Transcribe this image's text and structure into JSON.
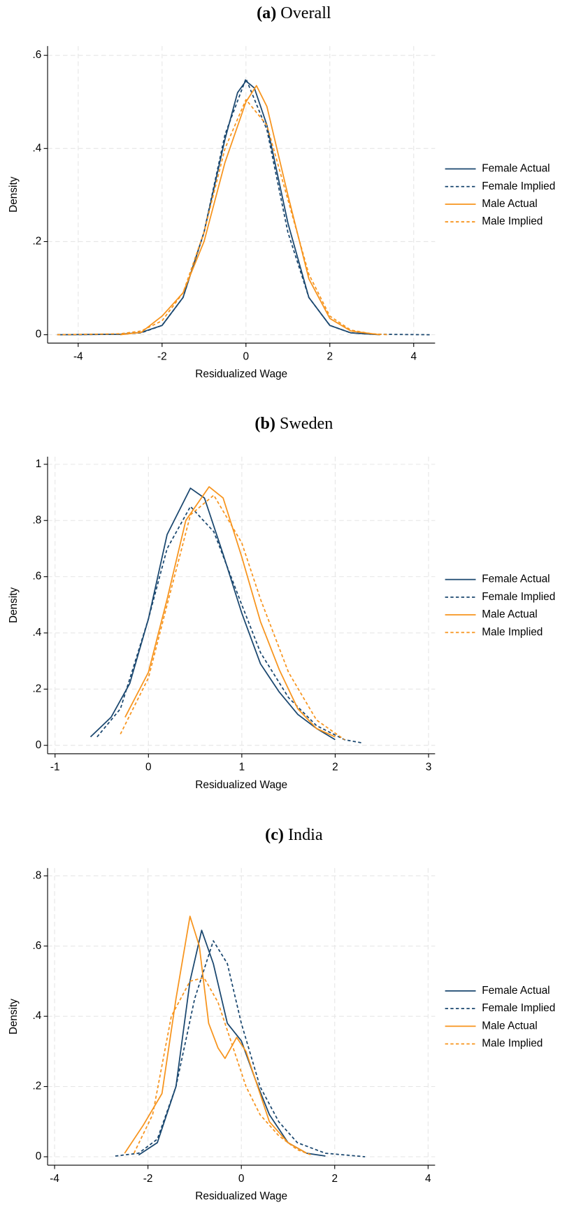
{
  "chart_data": [
    {
      "type": "line",
      "panel": "(a)",
      "title": "Overall",
      "x_label": "Residualized Wage",
      "y_label": "Density",
      "xlim": [
        -4.73,
        4.51
      ],
      "ylim": [
        -0.018,
        0.62
      ],
      "xticks": [
        -4,
        -2,
        0,
        2,
        4
      ],
      "yticks": [
        0,
        {
          "value": 0.2,
          "label": ".2"
        },
        {
          "value": 0.4,
          "label": ".4"
        },
        {
          "value": 0.6,
          "label": ".6"
        }
      ],
      "grid": true,
      "legend": "right",
      "series": [
        {
          "name": "Female Actual",
          "color": "#1a476f",
          "dashed": false,
          "x": [
            -4.5,
            -3,
            -2.5,
            -2,
            -1.5,
            -1,
            -0.5,
            -0.2,
            0,
            0.2,
            0.5,
            1,
            1.5,
            2,
            2.5,
            3.2
          ],
          "values": [
            0,
            0.001,
            0.005,
            0.02,
            0.08,
            0.22,
            0.42,
            0.52,
            0.545,
            0.53,
            0.45,
            0.24,
            0.08,
            0.02,
            0.004,
            0
          ]
        },
        {
          "name": "Female Implied",
          "color": "#1a476f",
          "dashed": true,
          "x": [
            -4.5,
            -3,
            -2.5,
            -2,
            -1.5,
            -1,
            -0.5,
            0,
            0.5,
            1,
            1.5,
            2,
            2.5,
            3,
            4.4
          ],
          "values": [
            0,
            0.001,
            0.004,
            0.02,
            0.08,
            0.22,
            0.43,
            0.55,
            0.44,
            0.22,
            0.08,
            0.02,
            0.004,
            0.001,
            0
          ]
        },
        {
          "name": "Male Actual",
          "color": "#f7941d",
          "dashed": false,
          "x": [
            -3,
            -2.5,
            -2,
            -1.5,
            -1,
            -0.5,
            0,
            0.25,
            0.5,
            1,
            1.5,
            2,
            2.5,
            3.2
          ],
          "values": [
            0,
            0.005,
            0.04,
            0.09,
            0.2,
            0.37,
            0.5,
            0.535,
            0.49,
            0.3,
            0.12,
            0.035,
            0.008,
            0
          ]
        },
        {
          "name": "Male Implied",
          "color": "#f7941d",
          "dashed": true,
          "x": [
            -4.5,
            -3,
            -2.5,
            -2,
            -1.5,
            -1,
            -0.5,
            0,
            0.5,
            1,
            1.5,
            2,
            2.5,
            3,
            3.4
          ],
          "values": [
            0,
            0.002,
            0.008,
            0.03,
            0.09,
            0.22,
            0.4,
            0.505,
            0.45,
            0.29,
            0.13,
            0.04,
            0.01,
            0.002,
            0
          ]
        }
      ]
    },
    {
      "type": "line",
      "panel": "(b)",
      "title": "Sweden",
      "x_label": "Residualized Wage",
      "y_label": "Density",
      "xlim": [
        -1.08,
        3.07
      ],
      "ylim": [
        -0.03,
        1.027
      ],
      "xticks": [
        -1,
        0,
        1,
        2,
        3
      ],
      "yticks": [
        0,
        {
          "value": 0.2,
          "label": ".2"
        },
        {
          "value": 0.4,
          "label": ".4"
        },
        {
          "value": 0.6,
          "label": ".6"
        },
        {
          "value": 0.8,
          "label": ".8"
        },
        1
      ],
      "grid": true,
      "legend": "right",
      "series": [
        {
          "name": "Female Actual",
          "color": "#1a476f",
          "dashed": false,
          "x": [
            -0.62,
            -0.4,
            -0.2,
            0,
            0.2,
            0.45,
            0.6,
            0.8,
            1,
            1.2,
            1.4,
            1.6,
            1.8,
            2
          ],
          "values": [
            0.03,
            0.1,
            0.22,
            0.45,
            0.75,
            0.915,
            0.88,
            0.68,
            0.47,
            0.29,
            0.19,
            0.11,
            0.06,
            0.02
          ]
        },
        {
          "name": "Female Implied",
          "color": "#1a476f",
          "dashed": true,
          "x": [
            -0.55,
            -0.3,
            0,
            0.2,
            0.45,
            0.7,
            1,
            1.2,
            1.5,
            1.8,
            2.1,
            2.3
          ],
          "values": [
            0.03,
            0.13,
            0.45,
            0.7,
            0.85,
            0.76,
            0.5,
            0.33,
            0.17,
            0.07,
            0.02,
            0.008
          ]
        },
        {
          "name": "Male Actual",
          "color": "#f7941d",
          "dashed": false,
          "x": [
            -0.25,
            0,
            0.2,
            0.4,
            0.65,
            0.8,
            1,
            1.2,
            1.4,
            1.6,
            1.8,
            2
          ],
          "values": [
            0.1,
            0.26,
            0.52,
            0.8,
            0.92,
            0.88,
            0.67,
            0.44,
            0.27,
            0.13,
            0.06,
            0.03
          ]
        },
        {
          "name": "Male Implied",
          "color": "#f7941d",
          "dashed": true,
          "x": [
            -0.3,
            0,
            0.2,
            0.45,
            0.7,
            1,
            1.2,
            1.5,
            1.8,
            2.1
          ],
          "values": [
            0.04,
            0.24,
            0.5,
            0.82,
            0.89,
            0.72,
            0.52,
            0.26,
            0.09,
            0.02
          ]
        }
      ]
    },
    {
      "type": "line",
      "panel": "(c)",
      "title": "India",
      "x_label": "Residualized Wage",
      "y_label": "Density",
      "xlim": [
        -4.15,
        4.15
      ],
      "ylim": [
        -0.024,
        0.822
      ],
      "xticks": [
        -4,
        -2,
        0,
        2,
        4
      ],
      "yticks": [
        0,
        {
          "value": 0.2,
          "label": ".2"
        },
        {
          "value": 0.4,
          "label": ".4"
        },
        {
          "value": 0.6,
          "label": ".6"
        },
        {
          "value": 0.8,
          "label": ".8"
        }
      ],
      "grid": true,
      "legend": "right",
      "series": [
        {
          "name": "Female Actual",
          "color": "#1a476f",
          "dashed": false,
          "x": [
            -2.2,
            -1.8,
            -1.4,
            -1.1,
            -0.85,
            -0.6,
            -0.3,
            0,
            0.3,
            0.6,
            1,
            1.4,
            1.8
          ],
          "values": [
            0.005,
            0.04,
            0.2,
            0.5,
            0.645,
            0.55,
            0.38,
            0.33,
            0.22,
            0.12,
            0.04,
            0.01,
            0.002
          ]
        },
        {
          "name": "Female Implied",
          "color": "#1a476f",
          "dashed": true,
          "x": [
            -2.7,
            -2.2,
            -1.8,
            -1.4,
            -1,
            -0.6,
            -0.3,
            0,
            0.4,
            0.8,
            1.2,
            1.8,
            2.65
          ],
          "values": [
            0.002,
            0.01,
            0.05,
            0.2,
            0.45,
            0.615,
            0.55,
            0.38,
            0.2,
            0.1,
            0.04,
            0.01,
            0
          ]
        },
        {
          "name": "Male Actual",
          "color": "#f7941d",
          "dashed": false,
          "x": [
            -2.5,
            -2.1,
            -1.7,
            -1.4,
            -1.1,
            -0.9,
            -0.7,
            -0.5,
            -0.35,
            -0.1,
            0.1,
            0.3,
            0.6,
            1,
            1.4
          ],
          "values": [
            0.01,
            0.09,
            0.18,
            0.45,
            0.685,
            0.6,
            0.38,
            0.31,
            0.28,
            0.34,
            0.3,
            0.22,
            0.1,
            0.04,
            0.01
          ]
        },
        {
          "name": "Male Implied",
          "color": "#f7941d",
          "dashed": true,
          "x": [
            -2.3,
            -1.9,
            -1.5,
            -1.1,
            -0.8,
            -0.5,
            -0.2,
            0.1,
            0.4,
            0.8,
            1.2,
            1.5
          ],
          "values": [
            0.01,
            0.12,
            0.4,
            0.5,
            0.51,
            0.44,
            0.32,
            0.2,
            0.12,
            0.06,
            0.02,
            0.005
          ]
        }
      ]
    }
  ]
}
